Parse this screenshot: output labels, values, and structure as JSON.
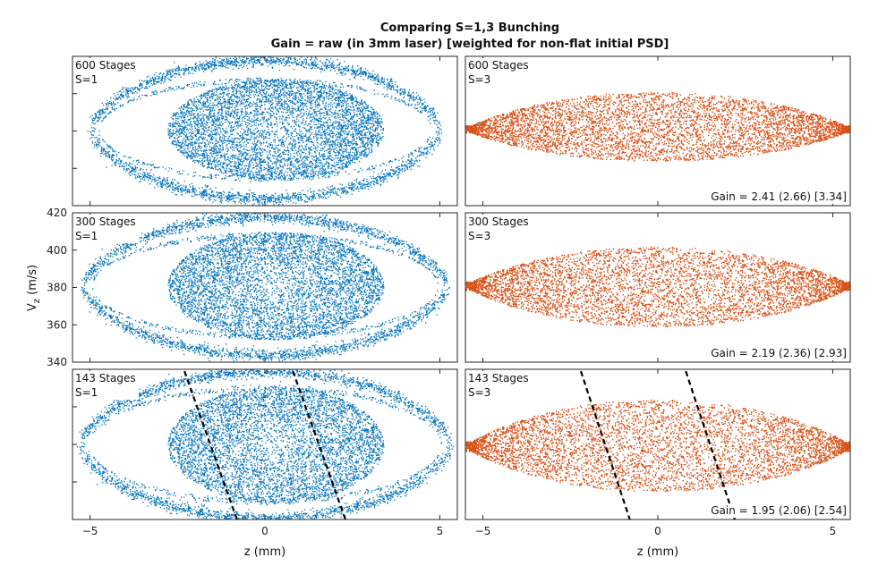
{
  "figure": {
    "title": "Comparing S=1,3 Bunching",
    "subtitle": "Gain = raw (in 3mm laser) [weighted for non-flat initial PSD]"
  },
  "chart_data": {
    "type": "scatter",
    "xlabel": "z (mm)",
    "ylabel": "V",
    "ylabel_sub": "z",
    "ylabel_unit": " (m/s)",
    "xlim": [
      -5.5,
      5.5
    ],
    "ylim": [
      340,
      420
    ],
    "xticks": [
      -5,
      0,
      5
    ],
    "yticks": [
      340,
      360,
      380,
      400,
      420
    ],
    "colors": {
      "S1": "#0072BD",
      "S3": "#D95319",
      "lines": "#000000"
    },
    "panels": [
      {
        "row": 0,
        "col": 0,
        "stages_label": "600 Stages",
        "s_label": "S=1",
        "series": "S1",
        "gain": "",
        "core": {
          "cx": 0.3,
          "cy": 381,
          "rx": 3.0,
          "ry": 26
        },
        "halo": {
          "rx": 5.0,
          "ry": 37,
          "ry_inner": 27
        }
      },
      {
        "row": 0,
        "col": 1,
        "stages_label": "600 Stages",
        "s_label": "S=3",
        "series": "S3",
        "gain": "Gain = 2.41 (2.66) [3.34]",
        "lens": {
          "x0": -5.5,
          "x1": 5.5,
          "cy": 381,
          "h_top": 20,
          "h_bot": 17
        }
      },
      {
        "row": 1,
        "col": 0,
        "stages_label": "300 Stages",
        "s_label": "S=1",
        "series": "S1",
        "gain": "",
        "core": {
          "cx": 0.3,
          "cy": 381,
          "rx": 3.0,
          "ry": 28
        },
        "halo": {
          "rx": 5.2,
          "ry": 37,
          "ry_inner": 28
        }
      },
      {
        "row": 1,
        "col": 1,
        "stages_label": "300 Stages",
        "s_label": "S=3",
        "series": "S3",
        "gain": "Gain = 2.19 (2.36) [2.93]",
        "lens": {
          "x0": -5.5,
          "x1": 5.5,
          "cy": 381,
          "h_top": 21,
          "h_bot": 22
        }
      },
      {
        "row": 2,
        "col": 0,
        "stages_label": "143 Stages",
        "s_label": "S=1",
        "series": "S1",
        "gain": "",
        "core": {
          "cx": 0.3,
          "cy": 380,
          "rx": 3.0,
          "ry": 30
        },
        "halo": {
          "rx": 5.3,
          "ry": 39,
          "ry_inner": 31
        },
        "dashed": [
          [
            [
              -2.3,
              419
            ],
            [
              -0.8,
              340
            ]
          ],
          [
            [
              0.8,
              419
            ],
            [
              2.3,
              340
            ]
          ]
        ]
      },
      {
        "row": 2,
        "col": 1,
        "stages_label": "143 Stages",
        "s_label": "S=3",
        "series": "S3",
        "gain": "Gain = 1.95 (2.06) [2.54]",
        "lens": {
          "x0": -5.5,
          "x1": 5.5,
          "cy": 379,
          "h_top": 25,
          "h_bot": 24
        },
        "dashed": [
          [
            [
              -2.2,
              419
            ],
            [
              -0.8,
              340
            ]
          ],
          [
            [
              0.8,
              419
            ],
            [
              2.2,
              340
            ]
          ]
        ]
      }
    ]
  }
}
